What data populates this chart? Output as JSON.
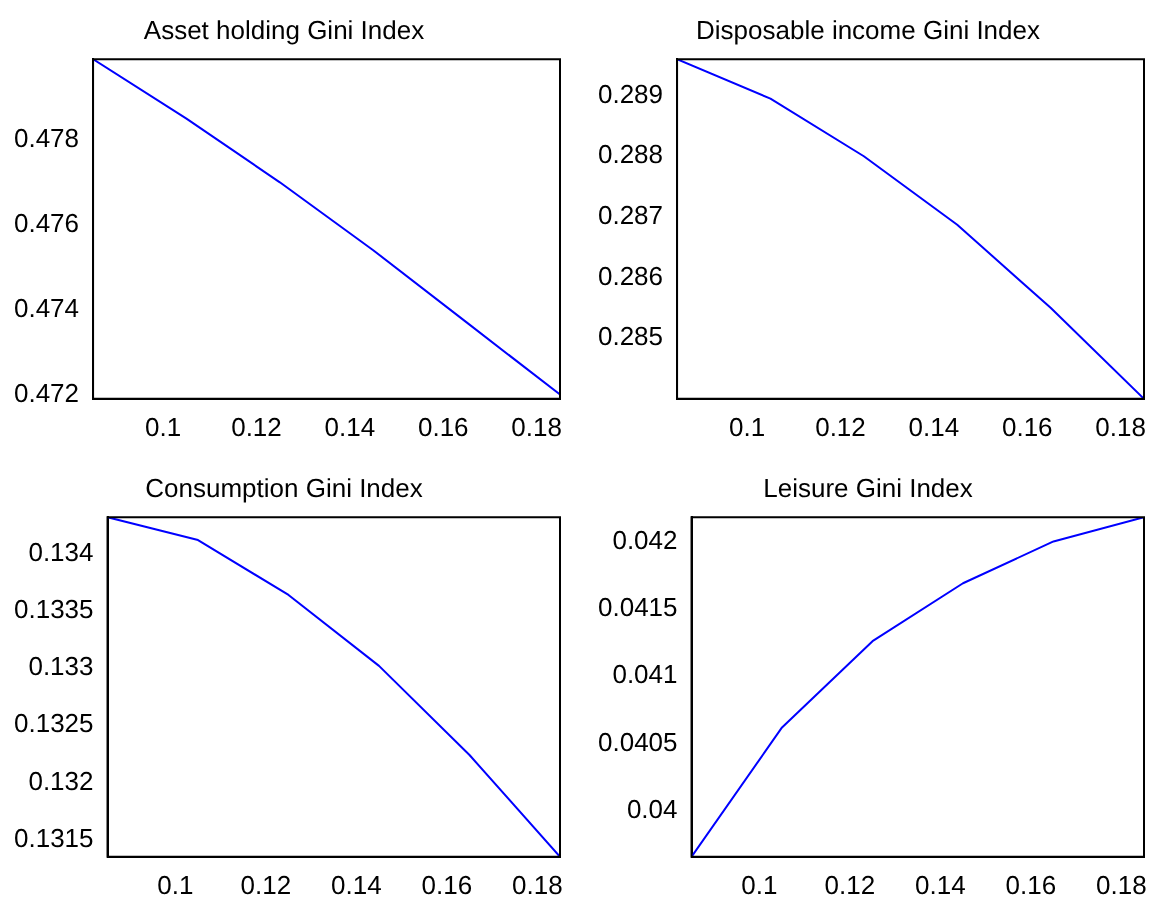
{
  "chart_data": [
    {
      "type": "line",
      "title": "Asset holding Gini Index",
      "x": [
        0.085,
        0.105,
        0.125,
        0.145,
        0.165,
        0.185
      ],
      "series": [
        {
          "color": "#0000ff",
          "values": [
            0.4799,
            0.4785,
            0.477,
            0.4754,
            0.4737,
            0.472
          ]
        }
      ],
      "xlim": [
        0.085,
        0.185
      ],
      "xticks": [
        0.1,
        0.12,
        0.14,
        0.16,
        0.18
      ],
      "ylim": [
        0.4719,
        0.4799
      ],
      "yticks": [
        0.472,
        0.474,
        0.476,
        0.478
      ],
      "grid": false,
      "legend": false,
      "marker": "none",
      "line_style": "solid"
    },
    {
      "type": "line",
      "title": "Disposable income Gini Index",
      "x": [
        0.085,
        0.105,
        0.125,
        0.145,
        0.165,
        0.185
      ],
      "series": [
        {
          "color": "#0000ff",
          "values": [
            0.2896,
            0.28895,
            0.288,
            0.28687,
            0.2855,
            0.284
          ]
        }
      ],
      "xlim": [
        0.085,
        0.185
      ],
      "xticks": [
        0.1,
        0.12,
        0.14,
        0.16,
        0.18
      ],
      "ylim": [
        0.284,
        0.2896
      ],
      "yticks": [
        0.285,
        0.286,
        0.287,
        0.288,
        0.289
      ],
      "grid": false,
      "legend": false,
      "marker": "none",
      "line_style": "solid"
    },
    {
      "type": "line",
      "title": "Consumption Gini Index",
      "x": [
        0.085,
        0.105,
        0.125,
        0.145,
        0.165,
        0.185
      ],
      "series": [
        {
          "color": "#0000ff",
          "values": [
            0.13432,
            0.13412,
            0.13364,
            0.13302,
            0.13224,
            0.13135
          ]
        }
      ],
      "xlim": [
        0.085,
        0.185
      ],
      "xticks": [
        0.1,
        0.12,
        0.14,
        0.16,
        0.18
      ],
      "ylim": [
        0.13135,
        0.13432
      ],
      "yticks": [
        0.1315,
        0.132,
        0.1325,
        0.133,
        0.1335,
        0.134
      ],
      "grid": false,
      "legend": false,
      "marker": "none",
      "line_style": "solid"
    },
    {
      "type": "line",
      "title": "Leisure Gini Index",
      "x": [
        0.085,
        0.105,
        0.125,
        0.145,
        0.165,
        0.185
      ],
      "series": [
        {
          "color": "#0000ff",
          "values": [
            0.03966,
            0.04062,
            0.04126,
            0.04169,
            0.042,
            0.04218
          ]
        }
      ],
      "xlim": [
        0.085,
        0.185
      ],
      "xticks": [
        0.1,
        0.12,
        0.14,
        0.16,
        0.18
      ],
      "ylim": [
        0.03966,
        0.04218
      ],
      "yticks": [
        0.04,
        0.0405,
        0.041,
        0.0415,
        0.042
      ],
      "grid": false,
      "legend": false,
      "marker": "none",
      "line_style": "solid"
    }
  ]
}
